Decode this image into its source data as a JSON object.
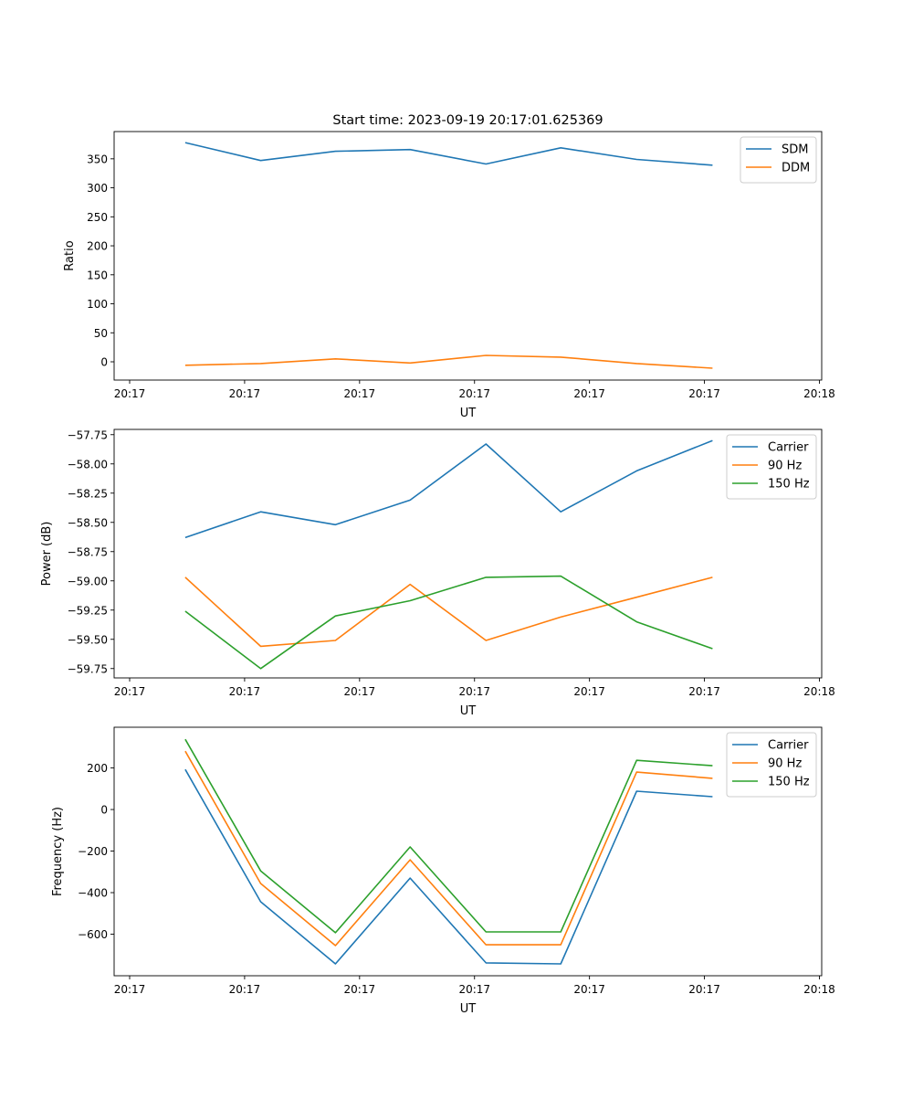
{
  "chart_data": [
    {
      "type": "line",
      "title": "Start time: 2023-09-19 20:17:01.625369",
      "xlabel": "UT",
      "ylabel": "Ratio",
      "x": [
        4.84,
        11.4,
        17.9,
        24.4,
        31.0,
        37.5,
        44.1,
        50.7
      ],
      "xlim": [
        -1.35,
        60.2
      ],
      "xticks": [
        0,
        10,
        20,
        30,
        40,
        50,
        60
      ],
      "xtick_labels": [
        "20:17",
        "20:17",
        "20:17",
        "20:17",
        "20:17",
        "20:17",
        "20:18"
      ],
      "ylim": [
        -31.5,
        397
      ],
      "yticks": [
        0,
        50,
        100,
        150,
        200,
        250,
        300,
        350
      ],
      "ytick_labels": [
        "0",
        "50",
        "100",
        "150",
        "200",
        "250",
        "300",
        "350"
      ],
      "legend": "top-right",
      "series": [
        {
          "name": "SDM",
          "color": "#1f77b4",
          "values": [
            378,
            347,
            363,
            366,
            341,
            369,
            349,
            339
          ]
        },
        {
          "name": "DDM",
          "color": "#ff7f0e",
          "values": [
            -6,
            -3,
            5,
            -2,
            11,
            8,
            -3,
            -11
          ]
        }
      ]
    },
    {
      "type": "line",
      "title": "",
      "xlabel": "UT",
      "ylabel": "Power (dB)",
      "x": [
        4.84,
        11.4,
        17.9,
        24.4,
        31.0,
        37.5,
        44.1,
        50.7
      ],
      "xlim": [
        -1.35,
        60.2
      ],
      "xticks": [
        0,
        10,
        20,
        30,
        40,
        50,
        60
      ],
      "xtick_labels": [
        "20:17",
        "20:17",
        "20:17",
        "20:17",
        "20:17",
        "20:17",
        "20:18"
      ],
      "ylim": [
        -59.83,
        -57.705
      ],
      "yticks": [
        -57.75,
        -58.0,
        -58.25,
        -58.5,
        -58.75,
        -59.0,
        -59.25,
        -59.5,
        -59.75
      ],
      "ytick_labels": [
        "−57.75",
        "−58.00",
        "−58.25",
        "−58.50",
        "−58.75",
        "−59.00",
        "−59.25",
        "−59.50",
        "−59.75"
      ],
      "legend": "top-right",
      "series": [
        {
          "name": "Carrier",
          "color": "#1f77b4",
          "values": [
            -58.63,
            -58.41,
            -58.52,
            -58.31,
            -57.83,
            -58.41,
            -58.06,
            -57.8
          ]
        },
        {
          "name": "90 Hz",
          "color": "#ff7f0e",
          "values": [
            -58.97,
            -59.56,
            -59.51,
            -59.03,
            -59.51,
            -59.31,
            -59.14,
            -58.97
          ]
        },
        {
          "name": "150 Hz",
          "color": "#2ca02c",
          "values": [
            -59.26,
            -59.75,
            -59.3,
            -59.17,
            -58.97,
            -58.96,
            -59.35,
            -59.58
          ]
        }
      ]
    },
    {
      "type": "line",
      "title": "",
      "xlabel": "UT",
      "ylabel": "Frequency (Hz)",
      "x": [
        4.84,
        11.4,
        17.9,
        24.4,
        31.0,
        37.5,
        44.1,
        50.7
      ],
      "xlim": [
        -1.35,
        60.2
      ],
      "xticks": [
        0,
        10,
        20,
        30,
        40,
        50,
        60
      ],
      "xtick_labels": [
        "20:17",
        "20:17",
        "20:17",
        "20:17",
        "20:17",
        "20:17",
        "20:18"
      ],
      "ylim": [
        -800,
        396
      ],
      "yticks": [
        200,
        0,
        -200,
        -400,
        -600
      ],
      "ytick_labels": [
        "200",
        "0",
        "−200",
        "−400",
        "−600"
      ],
      "legend": "top-right",
      "series": [
        {
          "name": "Carrier",
          "color": "#1f77b4",
          "values": [
            193,
            -444,
            -743,
            -330,
            -738,
            -743,
            88,
            62
          ]
        },
        {
          "name": "90 Hz",
          "color": "#ff7f0e",
          "values": [
            281,
            -356,
            -655,
            -242,
            -651,
            -651,
            180,
            150
          ]
        },
        {
          "name": "150 Hz",
          "color": "#2ca02c",
          "values": [
            338,
            -295,
            -593,
            -180,
            -589,
            -589,
            237,
            211
          ]
        }
      ]
    }
  ]
}
